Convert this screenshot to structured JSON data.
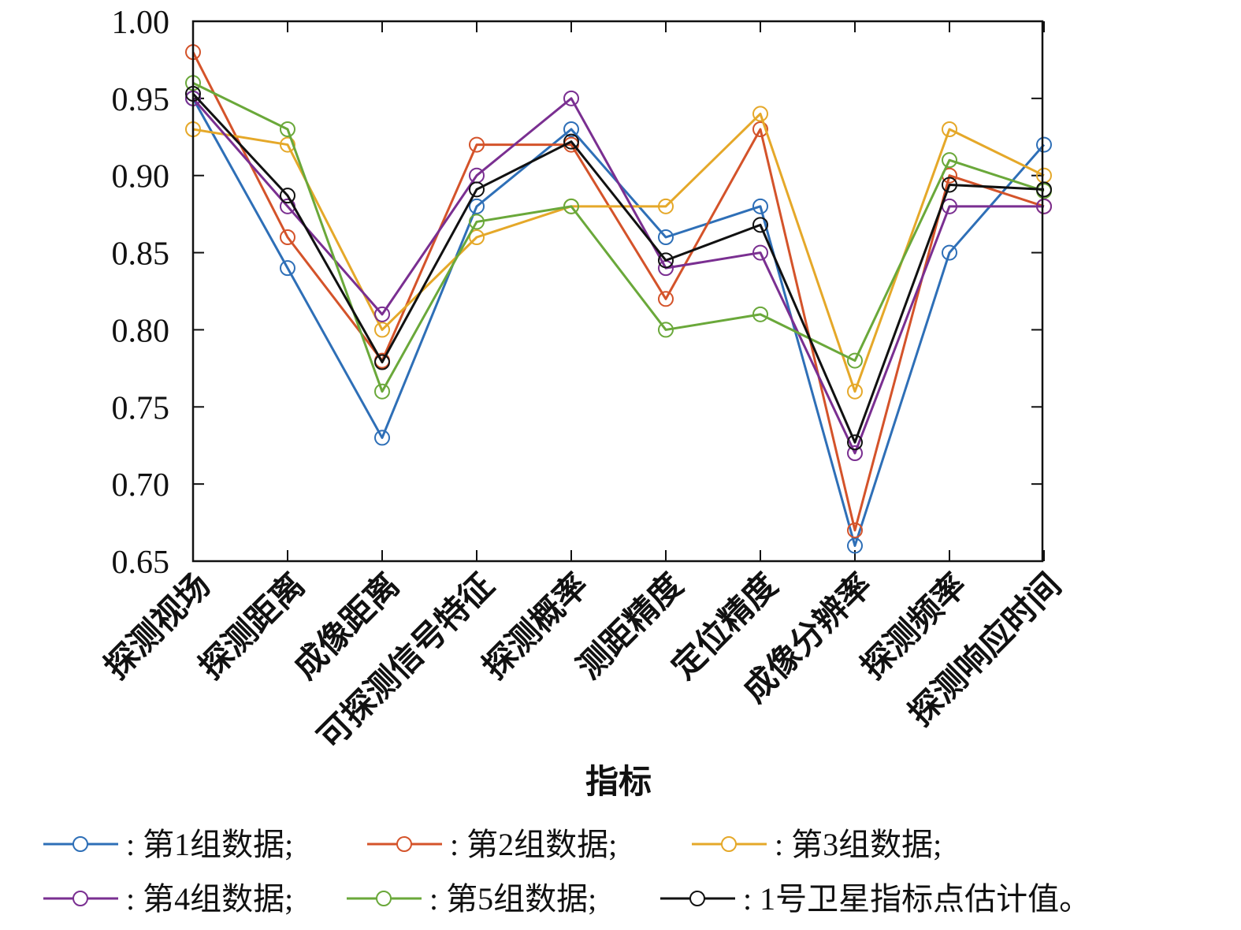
{
  "chart_data": {
    "type": "line",
    "title": "",
    "xlabel": "指标",
    "ylabel": "",
    "ylim": [
      0.65,
      1.0
    ],
    "yticks": [
      "0.65",
      "0.70",
      "0.75",
      "0.80",
      "0.85",
      "0.90",
      "0.95",
      "1.00"
    ],
    "categories": [
      "探测视场",
      "探测距离",
      "成像距离",
      "可探测信号特征",
      "探测概率",
      "测距精度",
      "定位精度",
      "成像分辨率",
      "探测频率",
      "探测响应时间"
    ],
    "series": [
      {
        "name": "第1组数据;",
        "prefix": ":",
        "color": "#2e6fb7",
        "values": [
          0.95,
          0.84,
          0.73,
          0.88,
          0.93,
          0.86,
          0.88,
          0.66,
          0.85,
          0.92
        ]
      },
      {
        "name": "第2组数据;",
        "prefix": ":",
        "color": "#d4532a",
        "values": [
          0.98,
          0.86,
          0.78,
          0.92,
          0.92,
          0.82,
          0.93,
          0.67,
          0.9,
          0.88
        ]
      },
      {
        "name": "第3组数据;",
        "prefix": ":",
        "color": "#e5a829",
        "values": [
          0.93,
          0.92,
          0.8,
          0.86,
          0.88,
          0.88,
          0.94,
          0.76,
          0.93,
          0.9
        ]
      },
      {
        "name": "第4组数据;",
        "prefix": ":",
        "color": "#7a2f91",
        "values": [
          0.95,
          0.88,
          0.81,
          0.9,
          0.95,
          0.84,
          0.85,
          0.72,
          0.88,
          0.88
        ]
      },
      {
        "name": "第5组数据;",
        "prefix": ":",
        "color": "#6aa83a",
        "values": [
          0.96,
          0.93,
          0.76,
          0.87,
          0.88,
          0.8,
          0.81,
          0.78,
          0.91,
          0.89
        ]
      },
      {
        "name": "1号卫星指标点估计值。",
        "prefix": ":",
        "color": "#111111",
        "values": [
          0.953,
          0.887,
          0.779,
          0.891,
          0.922,
          0.845,
          0.868,
          0.727,
          0.894,
          0.891
        ]
      }
    ],
    "legend_position": "bottom",
    "grid": false
  }
}
